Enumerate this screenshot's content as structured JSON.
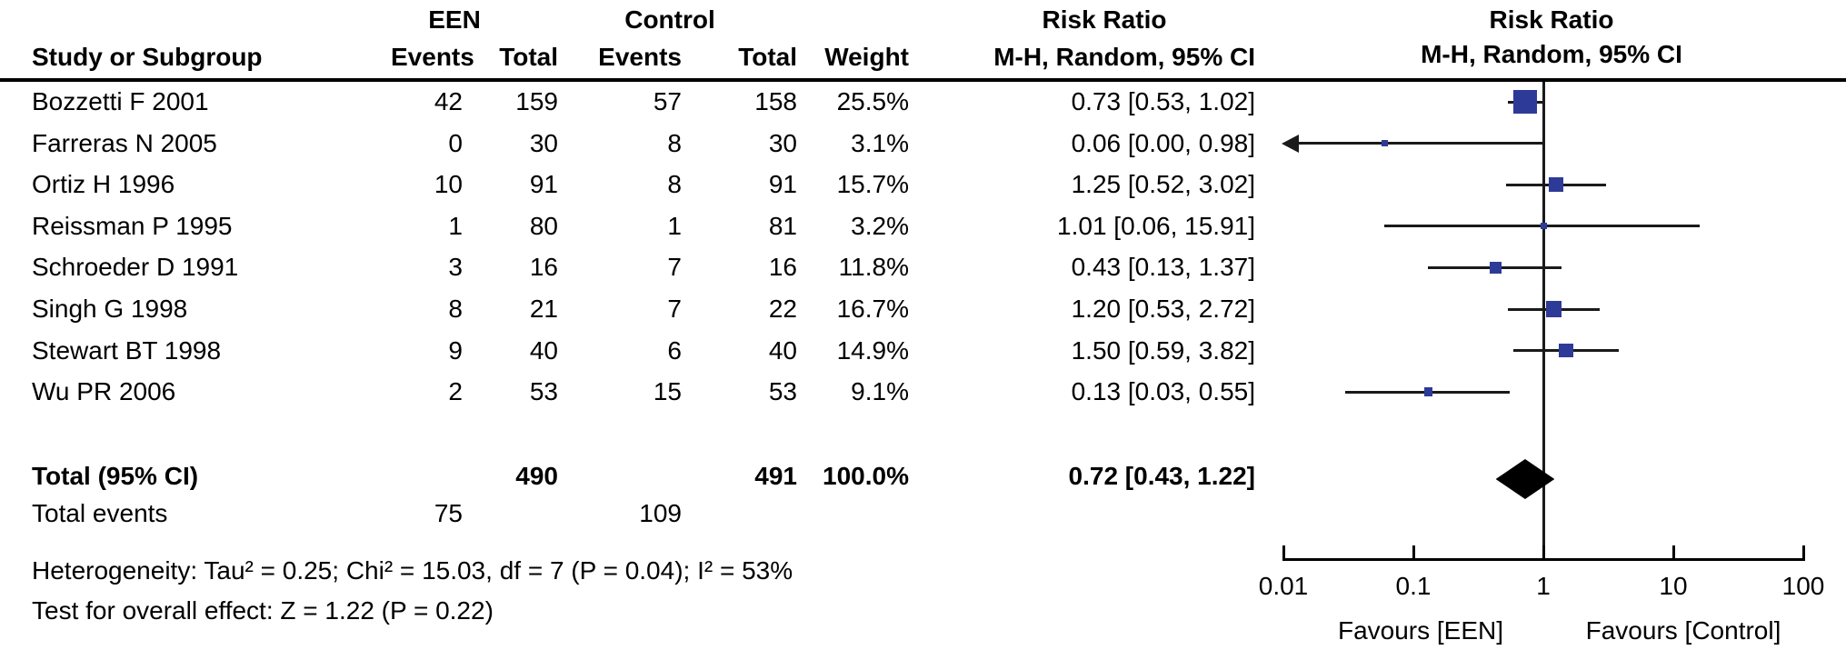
{
  "header": {
    "study_col": "Study or Subgroup",
    "group_een": "EEN",
    "group_control": "Control",
    "col_events": "Events",
    "col_total": "Total",
    "col_weight": "Weight",
    "risk_ratio": "Risk Ratio",
    "method": "M-H, Random, 95% CI"
  },
  "colors": {
    "marker_blue": "#2E3A98",
    "diamond_black": "#000000",
    "line_black": "#1a1a1a"
  },
  "chart_data": {
    "type": "forest",
    "effect_measure": "Risk Ratio",
    "method": "M-H, Random, 95% CI",
    "x_scale": "log10",
    "x_ticks": [
      0.01,
      0.1,
      1,
      10,
      100
    ],
    "x_range": [
      0.01,
      100
    ],
    "favours_left": "Favours [EEN]",
    "favours_right": "Favours [Control]",
    "studies": [
      {
        "name": "Bozzetti F 2001",
        "een_events": "42",
        "een_total": "159",
        "ctl_events": "57",
        "ctl_total": "158",
        "weight": "25.5%",
        "weight_pct": 25.5,
        "ci_label": "0.73 [0.53, 1.02]",
        "rr": 0.73,
        "lo": 0.53,
        "hi": 1.02,
        "arrow_left": false
      },
      {
        "name": "Farreras N 2005",
        "een_events": "0",
        "een_total": "30",
        "ctl_events": "8",
        "ctl_total": "30",
        "weight": "3.1%",
        "weight_pct": 3.1,
        "ci_label": "0.06 [0.00, 0.98]",
        "rr": 0.06,
        "lo": null,
        "hi": 0.98,
        "arrow_left": true
      },
      {
        "name": "Ortiz H 1996",
        "een_events": "10",
        "een_total": "91",
        "ctl_events": "8",
        "ctl_total": "91",
        "weight": "15.7%",
        "weight_pct": 15.7,
        "ci_label": "1.25 [0.52, 3.02]",
        "rr": 1.25,
        "lo": 0.52,
        "hi": 3.02,
        "arrow_left": false
      },
      {
        "name": "Reissman P 1995",
        "een_events": "1",
        "een_total": "80",
        "ctl_events": "1",
        "ctl_total": "81",
        "weight": "3.2%",
        "weight_pct": 3.2,
        "ci_label": "1.01 [0.06, 15.91]",
        "rr": 1.01,
        "lo": 0.06,
        "hi": 15.91,
        "arrow_left": false
      },
      {
        "name": "Schroeder D 1991",
        "een_events": "3",
        "een_total": "16",
        "ctl_events": "7",
        "ctl_total": "16",
        "weight": "11.8%",
        "weight_pct": 11.8,
        "ci_label": "0.43 [0.13, 1.37]",
        "rr": 0.43,
        "lo": 0.13,
        "hi": 1.37,
        "arrow_left": false
      },
      {
        "name": "Singh G 1998",
        "een_events": "8",
        "een_total": "21",
        "ctl_events": "7",
        "ctl_total": "22",
        "weight": "16.7%",
        "weight_pct": 16.7,
        "ci_label": "1.20 [0.53, 2.72]",
        "rr": 1.2,
        "lo": 0.53,
        "hi": 2.72,
        "arrow_left": false
      },
      {
        "name": "Stewart BT 1998",
        "een_events": "9",
        "een_total": "40",
        "ctl_events": "6",
        "ctl_total": "40",
        "weight": "14.9%",
        "weight_pct": 14.9,
        "ci_label": "1.50 [0.59, 3.82]",
        "rr": 1.5,
        "lo": 0.59,
        "hi": 3.82,
        "arrow_left": false
      },
      {
        "name": "Wu PR 2006",
        "een_events": "2",
        "een_total": "53",
        "ctl_events": "15",
        "ctl_total": "53",
        "weight": "9.1%",
        "weight_pct": 9.1,
        "ci_label": "0.13 [0.03, 0.55]",
        "rr": 0.13,
        "lo": 0.03,
        "hi": 0.55,
        "arrow_left": false
      }
    ],
    "total": {
      "label": "Total (95% CI)",
      "een_total": "490",
      "ctl_total": "491",
      "weight": "100.0%",
      "ci_label": "0.72 [0.43, 1.22]",
      "rr": 0.72,
      "lo": 0.43,
      "hi": 1.22,
      "events_label": "Total events",
      "een_events": "75",
      "ctl_events": "109"
    },
    "heterogeneity": "Heterogeneity: Tau² = 0.25; Chi² = 15.03, df = 7 (P = 0.04); I² = 53%",
    "overall_effect": "Test for overall effect: Z = 1.22 (P = 0.22)"
  }
}
